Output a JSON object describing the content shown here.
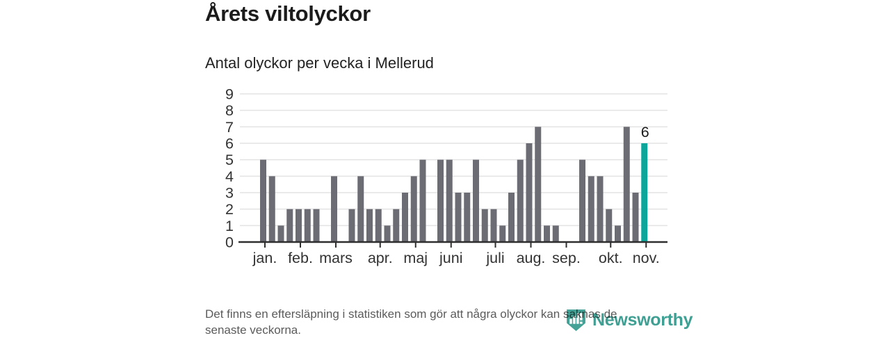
{
  "page": {
    "title": "Årets viltolyckor",
    "subtitle": "Antal olyckor per vecka i Mellerud",
    "footer_line1": "Det finns en eftersläpning i statistiken som gör att några olyckor kan saknas de",
    "footer_line2": "senaste veckorna.",
    "brand": {
      "name": "Newsworthy",
      "icon": "newsworthy-shield-barchart-icon"
    }
  },
  "colors": {
    "bar": "#6c6c74",
    "highlight": "#0da69a",
    "grid": "#e3e3e3",
    "axis": "#2f2f2f",
    "text": "#333333",
    "annotation": "#1b1b1b",
    "brand": "#43a295"
  },
  "chart_data": {
    "type": "bar",
    "title": "Årets viltolyckor",
    "subtitle": "Antal olyckor per vecka i Mellerud",
    "x_unit": "vecka",
    "week_numbers": [
      1,
      2,
      3,
      4,
      5,
      6,
      7,
      8,
      9,
      10,
      11,
      12,
      13,
      14,
      15,
      16,
      17,
      18,
      19,
      20,
      21,
      22,
      23,
      24,
      25,
      26,
      27,
      28,
      29,
      30,
      31,
      32,
      33,
      34,
      35,
      36,
      37,
      38,
      39,
      40,
      41,
      42,
      43,
      44
    ],
    "values": [
      5,
      4,
      1,
      2,
      2,
      2,
      2,
      0,
      4,
      0,
      2,
      4,
      2,
      2,
      1,
      2,
      3,
      4,
      5,
      0,
      5,
      5,
      3,
      3,
      5,
      2,
      2,
      1,
      3,
      5,
      6,
      7,
      1,
      1,
      0,
      0,
      5,
      4,
      4,
      2,
      1,
      7,
      3,
      6
    ],
    "highlight_index": 43,
    "highlight_label": "6",
    "ylim": [
      0,
      9
    ],
    "yticks": [
      0,
      1,
      2,
      3,
      4,
      5,
      6,
      7,
      8,
      9
    ],
    "grid": true,
    "legend": "none",
    "month_ticks": [
      {
        "label": "jan.",
        "week": 1
      },
      {
        "label": "feb.",
        "week": 5
      },
      {
        "label": "mars",
        "week": 9
      },
      {
        "label": "apr.",
        "week": 14
      },
      {
        "label": "maj",
        "week": 18
      },
      {
        "label": "juni",
        "week": 22
      },
      {
        "label": "juli",
        "week": 27
      },
      {
        "label": "aug.",
        "week": 31
      },
      {
        "label": "sep.",
        "week": 35
      },
      {
        "label": "okt.",
        "week": 40
      },
      {
        "label": "nov.",
        "week": 44
      }
    ]
  }
}
